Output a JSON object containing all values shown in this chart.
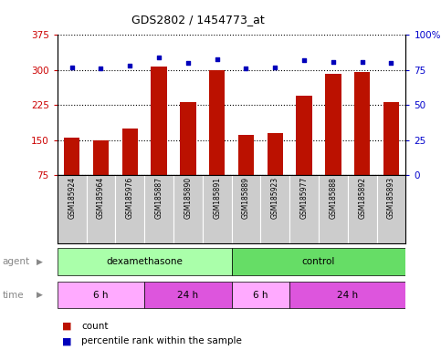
{
  "title": "GDS2802 / 1454773_at",
  "samples": [
    "GSM185924",
    "GSM185964",
    "GSM185976",
    "GSM185887",
    "GSM185890",
    "GSM185891",
    "GSM185889",
    "GSM185923",
    "GSM185977",
    "GSM185888",
    "GSM185892",
    "GSM185893"
  ],
  "bar_values": [
    155,
    150,
    175,
    308,
    232,
    300,
    160,
    165,
    245,
    292,
    296,
    232
  ],
  "dot_values": [
    77,
    76,
    78,
    84,
    80,
    83,
    76,
    77,
    82,
    81,
    81,
    80
  ],
  "ylim_left": [
    75,
    375
  ],
  "ylim_right": [
    0,
    100
  ],
  "yticks_left": [
    75,
    150,
    225,
    300,
    375
  ],
  "yticks_right": [
    0,
    25,
    50,
    75,
    100
  ],
  "bar_color": "#bb1100",
  "dot_color": "#0000bb",
  "agent_groups": [
    {
      "label": "dexamethasone",
      "start": 0,
      "end": 6,
      "color": "#aaffaa"
    },
    {
      "label": "control",
      "start": 6,
      "end": 12,
      "color": "#66dd66"
    }
  ],
  "time_groups": [
    {
      "label": "6 h",
      "start": 0,
      "end": 3,
      "color": "#ffaaff"
    },
    {
      "label": "24 h",
      "start": 3,
      "end": 6,
      "color": "#dd55dd"
    },
    {
      "label": "6 h",
      "start": 6,
      "end": 8,
      "color": "#ffaaff"
    },
    {
      "label": "24 h",
      "start": 8,
      "end": 12,
      "color": "#dd55dd"
    }
  ],
  "tick_label_color": "#cc0000",
  "right_tick_color": "#0000cc",
  "sample_bg_color": "#cccccc",
  "label_color": "#888888"
}
